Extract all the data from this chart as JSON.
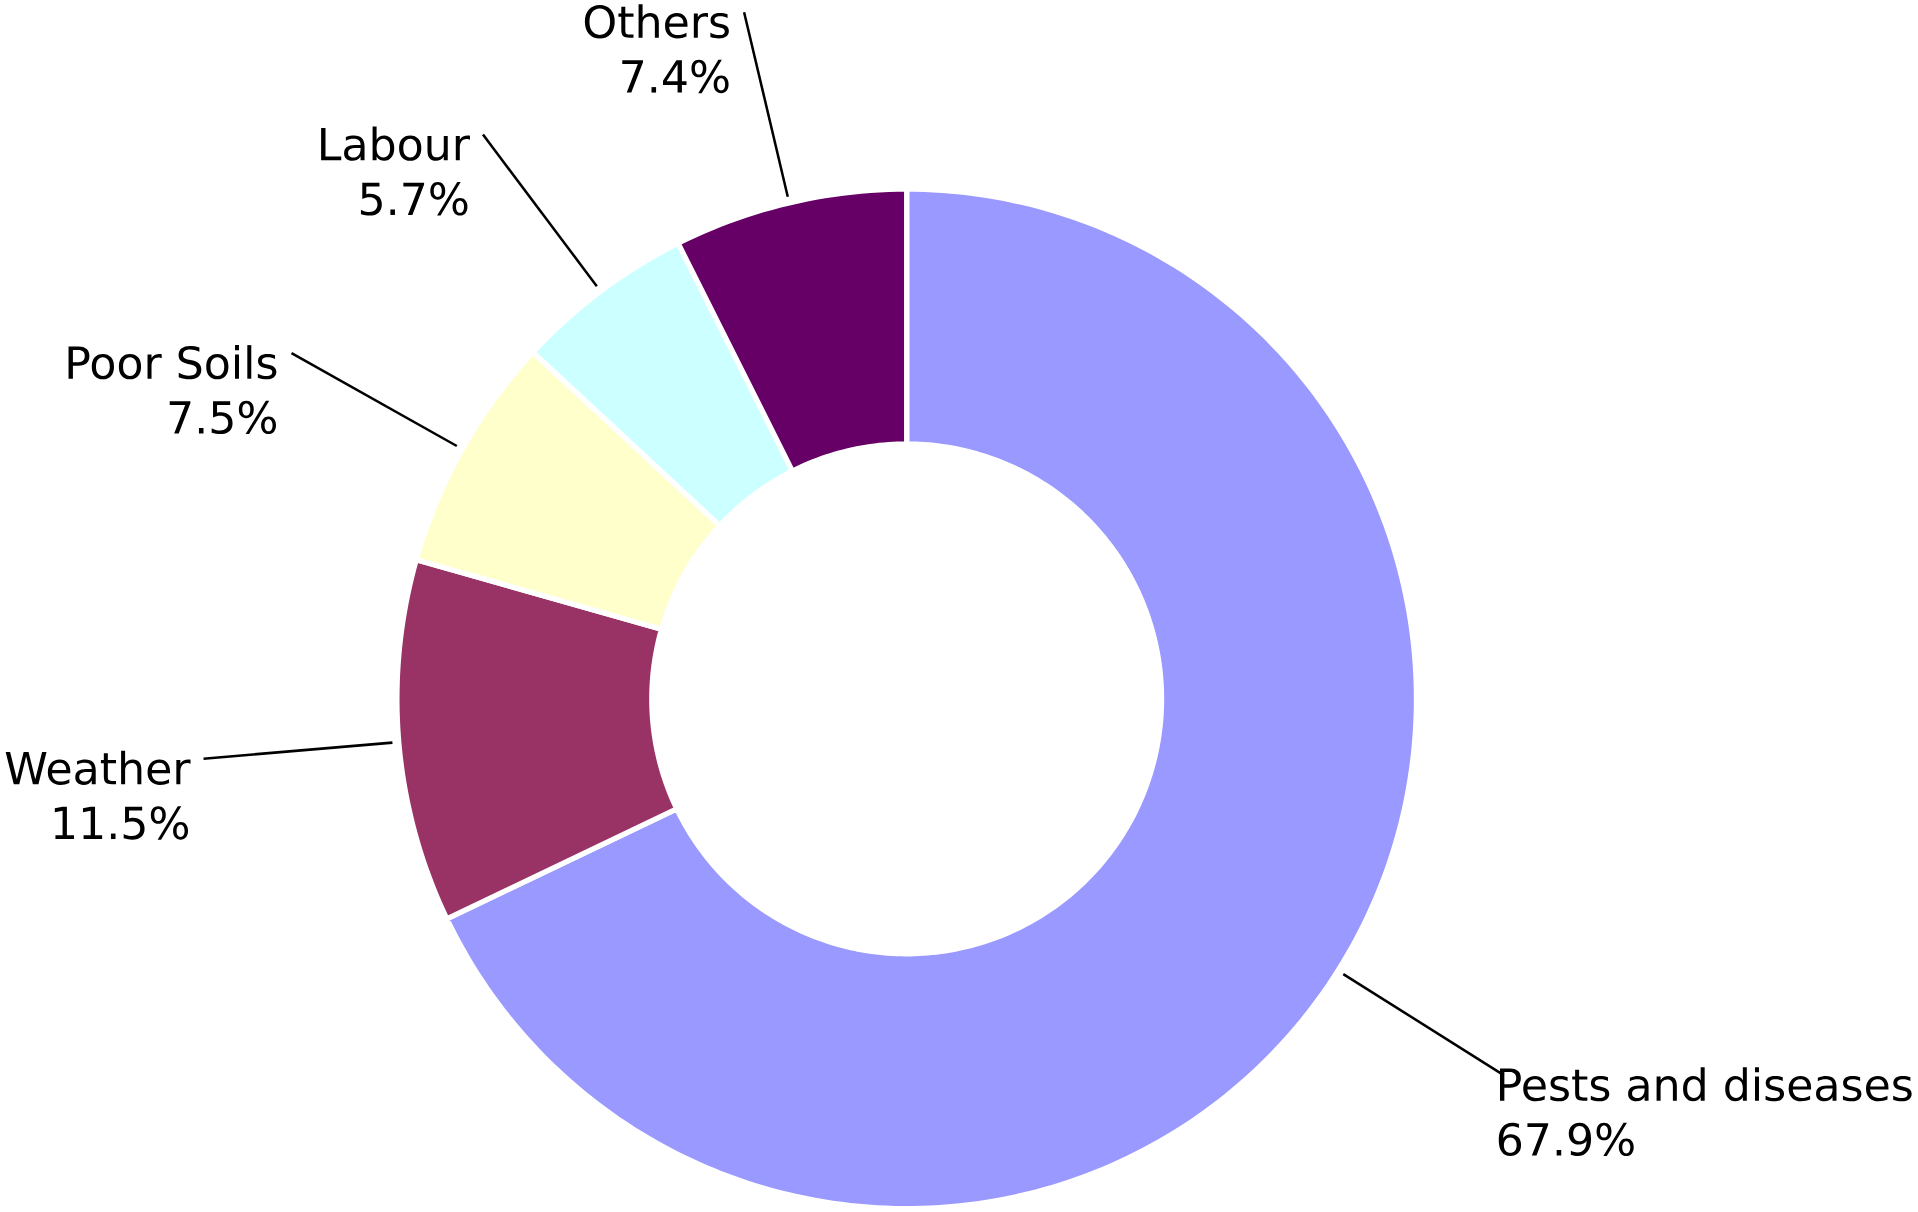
{
  "chart_data": {
    "type": "donut",
    "categories": [
      "Pests and diseases",
      "Weather",
      "Poor Soils",
      "Labour",
      "Others"
    ],
    "values": [
      67.9,
      11.5,
      7.5,
      5.7,
      7.4
    ],
    "value_labels": [
      "67.9%",
      "11.5%",
      "7.5%",
      "5.7%",
      "7.4%"
    ],
    "colors": [
      "#9999ff",
      "#993366",
      "#ffffcc",
      "#ccffff",
      "#660066"
    ]
  }
}
